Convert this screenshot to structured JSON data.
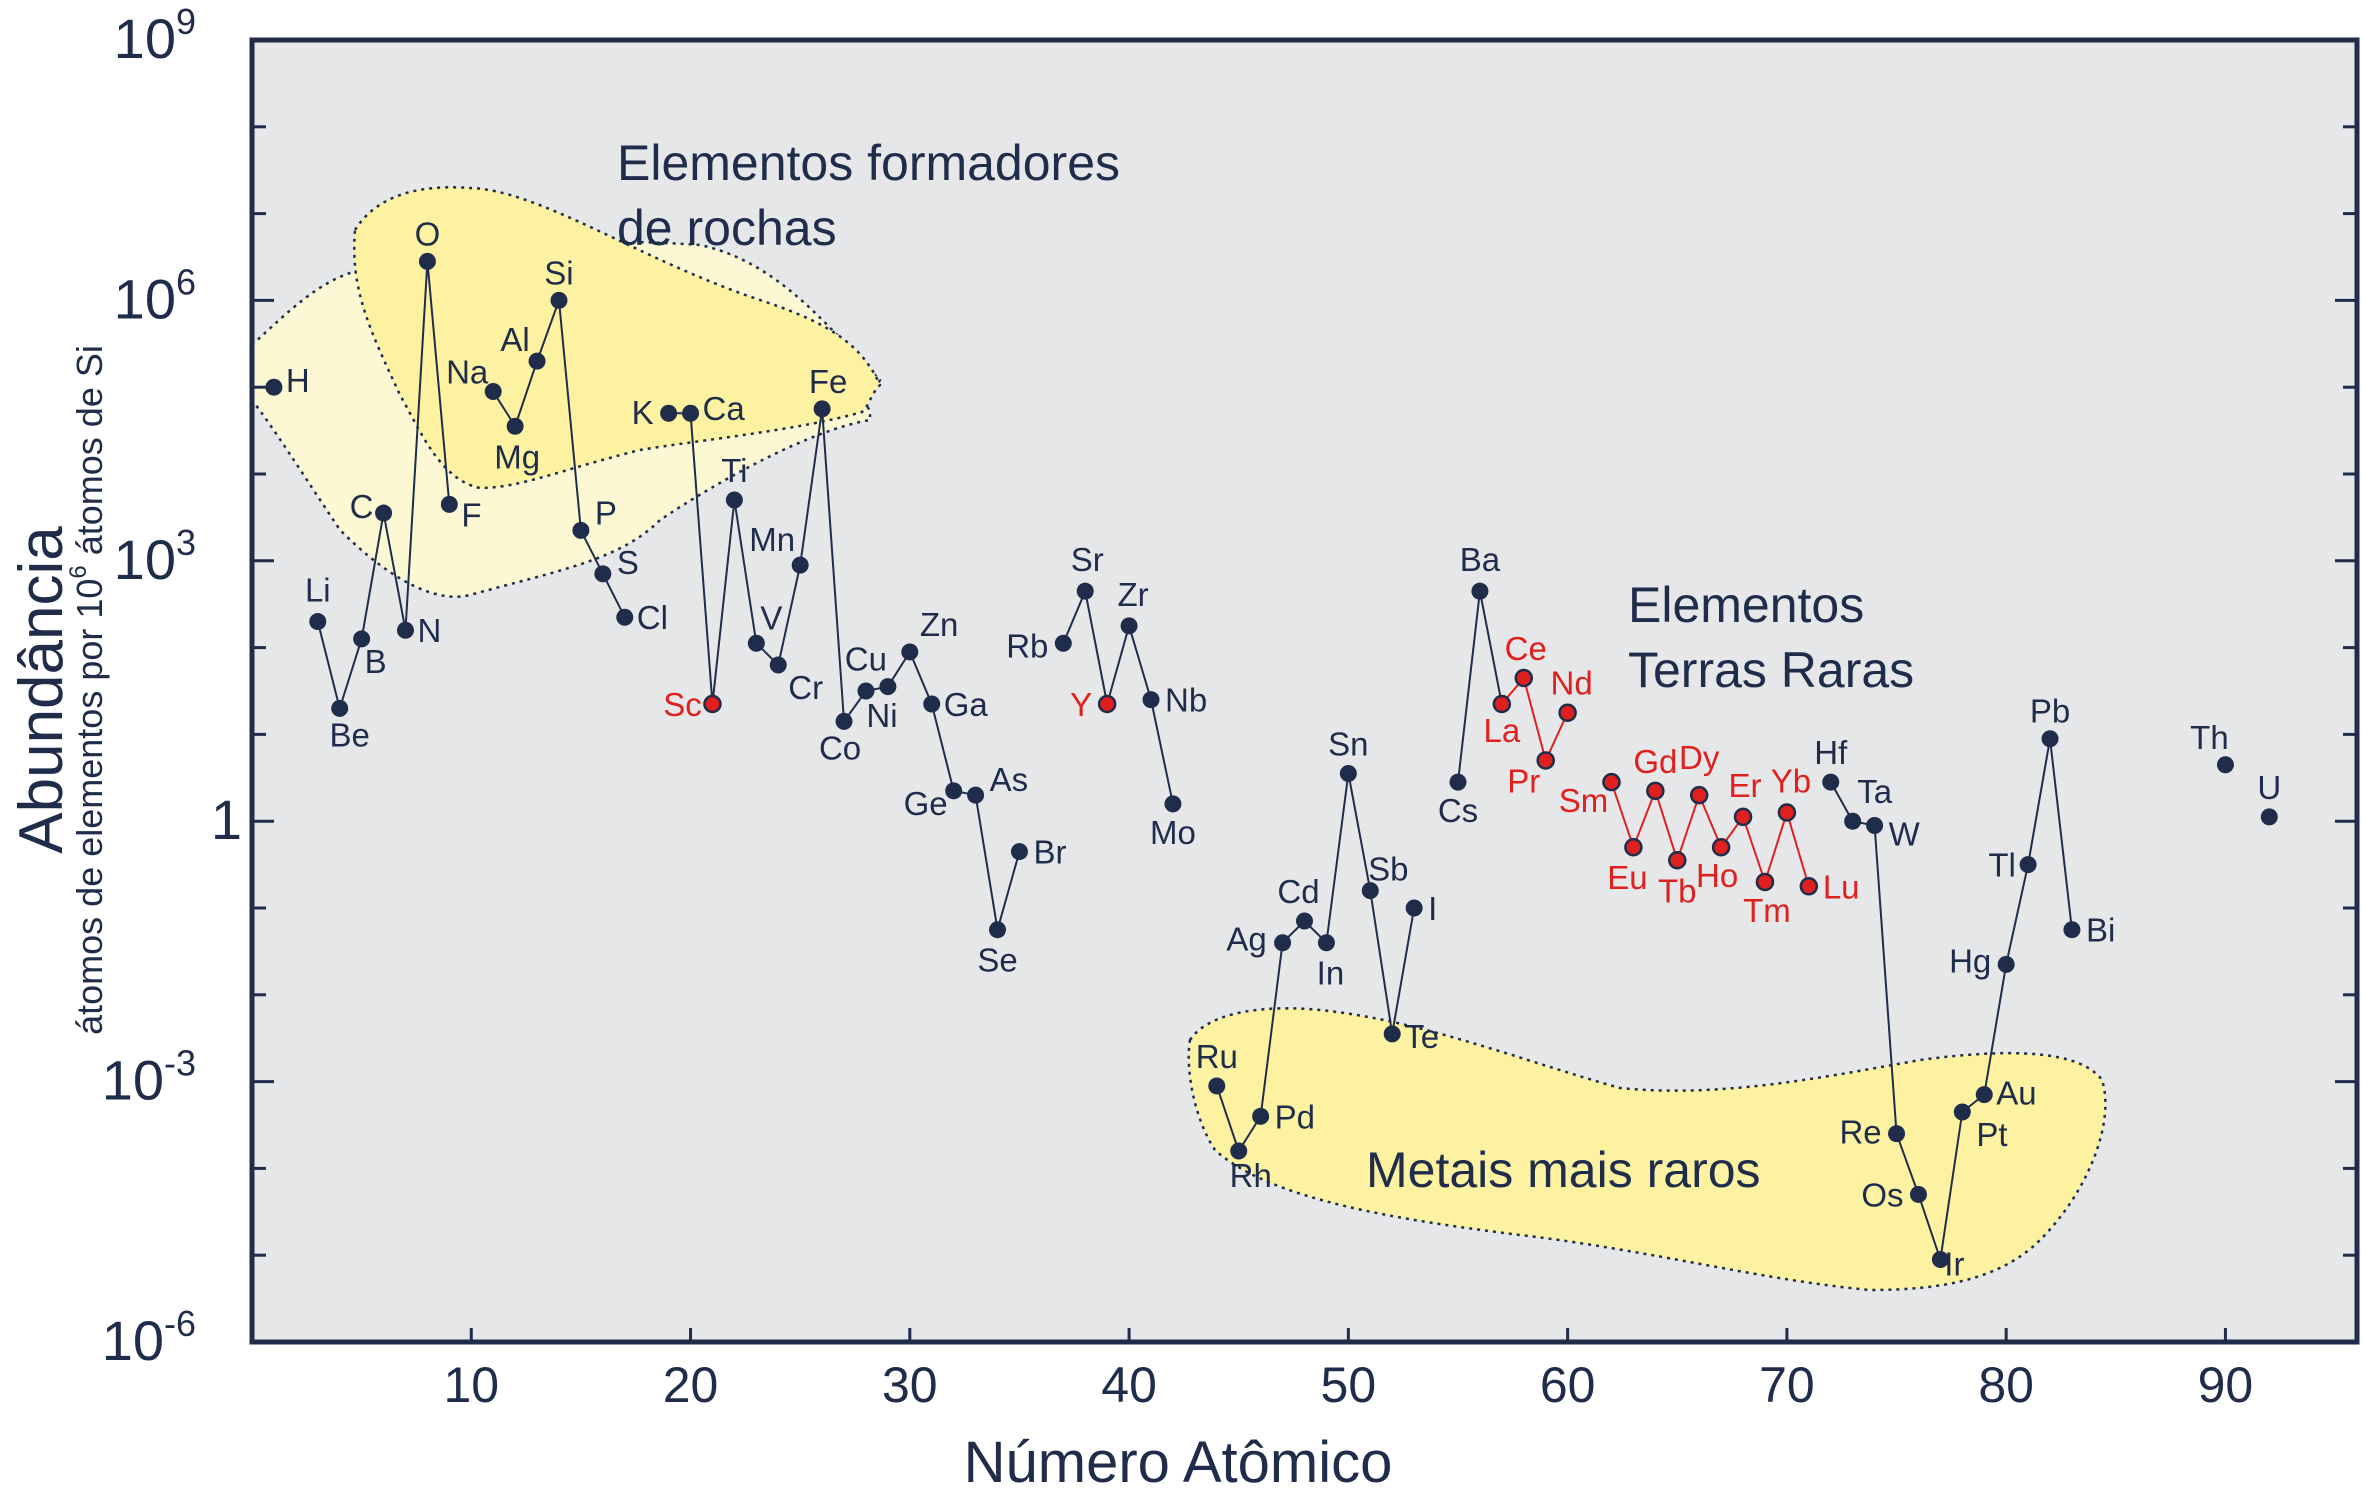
{
  "chart_data": {
    "type": "line",
    "title": "",
    "xlabel": "Número Atômico",
    "ylabel": "Abundância",
    "ylabel_sub_prefix": "átomos de elementos por 10",
    "ylabel_sub_sup": "6",
    "ylabel_sub_suffix": " átomos de Si",
    "xlim": [
      0,
      96
    ],
    "ylim_log10": [
      -6,
      9
    ],
    "x_ticks": [
      10,
      20,
      30,
      40,
      50,
      60,
      70,
      80,
      90
    ],
    "x_tick_labels": [
      "10",
      "20",
      "30",
      "40",
      "50",
      "60",
      "70",
      "80",
      "90"
    ],
    "y_major_ticks": [
      {
        "value": 9,
        "base": "10",
        "sup": "9"
      },
      {
        "value": 6,
        "base": "10",
        "sup": "6"
      },
      {
        "value": 3,
        "base": "10",
        "sup": "3"
      },
      {
        "value": 0,
        "base": "1",
        "sup": ""
      },
      {
        "value": -3,
        "base": "10",
        "sup": "-3"
      },
      {
        "value": -6,
        "base": "10",
        "sup": "-6"
      }
    ],
    "y_minor_ticks": [
      8,
      7,
      5,
      4,
      2,
      1,
      -1,
      -2,
      -4,
      -5
    ],
    "colors": {
      "background": "#e6e7e9",
      "frame": "#1f2d4b",
      "point": "#1f2d4b",
      "rare_earth": "#e0201f",
      "region_rock_dark": "#fdf2a2",
      "region_rock_light": "#fdf8d4",
      "region_metals": "#fdf2a2"
    },
    "points": [
      {
        "z": 1,
        "sym": "H",
        "log": 5.0,
        "lx": 12,
        "ly": 5,
        "anchor": "start"
      },
      {
        "z": 3,
        "sym": "Li",
        "log": 2.3,
        "lx": 0,
        "ly": -20,
        "anchor": "middle"
      },
      {
        "z": 4,
        "sym": "Be",
        "log": 1.3,
        "lx": 10,
        "ly": 38,
        "anchor": "middle"
      },
      {
        "z": 5,
        "sym": "B",
        "log": 2.1,
        "lx": 14,
        "ly": 34,
        "anchor": "middle"
      },
      {
        "z": 6,
        "sym": "C",
        "log": 3.55,
        "lx": -22,
        "ly": 5,
        "anchor": "middle"
      },
      {
        "z": 7,
        "sym": "N",
        "log": 2.2,
        "lx": 12,
        "ly": 12,
        "anchor": "start"
      },
      {
        "z": 8,
        "sym": "O",
        "log": 6.45,
        "lx": 0,
        "ly": -16,
        "anchor": "middle"
      },
      {
        "z": 9,
        "sym": "F",
        "log": 3.65,
        "lx": 12,
        "ly": 22,
        "anchor": "start"
      },
      {
        "z": 11,
        "sym": "Na",
        "log": 4.95,
        "lx": -26,
        "ly": -8,
        "anchor": "middle"
      },
      {
        "z": 12,
        "sym": "Mg",
        "log": 4.55,
        "lx": 2,
        "ly": 42,
        "anchor": "middle"
      },
      {
        "z": 13,
        "sym": "Al",
        "log": 5.3,
        "lx": -22,
        "ly": -10,
        "anchor": "middle"
      },
      {
        "z": 14,
        "sym": "Si",
        "log": 6.0,
        "lx": 0,
        "ly": -16,
        "anchor": "middle"
      },
      {
        "z": 15,
        "sym": "P",
        "log": 3.35,
        "lx": 14,
        "ly": -6,
        "anchor": "start"
      },
      {
        "z": 16,
        "sym": "S",
        "log": 2.85,
        "lx": 14,
        "ly": 0,
        "anchor": "start"
      },
      {
        "z": 17,
        "sym": "Cl",
        "log": 2.35,
        "lx": 12,
        "ly": 12,
        "anchor": "start"
      },
      {
        "z": 19,
        "sym": "K",
        "log": 4.7,
        "lx": -26,
        "ly": 11,
        "anchor": "middle"
      },
      {
        "z": 20,
        "sym": "Ca",
        "log": 4.7,
        "lx": 12,
        "ly": 7,
        "anchor": "start"
      },
      {
        "z": 21,
        "sym": "Sc",
        "log": 1.35,
        "lx": -30,
        "ly": 12,
        "anchor": "middle",
        "rare": true
      },
      {
        "z": 22,
        "sym": "Ti",
        "log": 3.7,
        "lx": 0,
        "ly": -18,
        "anchor": "middle"
      },
      {
        "z": 23,
        "sym": "V",
        "log": 2.05,
        "lx": 4,
        "ly": -14,
        "anchor": "start"
      },
      {
        "z": 24,
        "sym": "Cr",
        "log": 1.8,
        "lx": 10,
        "ly": 34,
        "anchor": "start"
      },
      {
        "z": 25,
        "sym": "Mn",
        "log": 2.95,
        "lx": -28,
        "ly": -14,
        "anchor": "middle"
      },
      {
        "z": 26,
        "sym": "Fe",
        "log": 4.75,
        "lx": 6,
        "ly": -16,
        "anchor": "middle"
      },
      {
        "z": 27,
        "sym": "Co",
        "log": 1.15,
        "lx": -4,
        "ly": 38,
        "anchor": "middle"
      },
      {
        "z": 28,
        "sym": "Ni",
        "log": 1.5,
        "lx": 16,
        "ly": 36,
        "anchor": "middle"
      },
      {
        "z": 29,
        "sym": "Cu",
        "log": 1.55,
        "lx": -22,
        "ly": -16,
        "anchor": "middle"
      },
      {
        "z": 30,
        "sym": "Zn",
        "log": 1.95,
        "lx": 10,
        "ly": -16,
        "anchor": "start"
      },
      {
        "z": 31,
        "sym": "Ga",
        "log": 1.35,
        "lx": 12,
        "ly": 12,
        "anchor": "start"
      },
      {
        "z": 32,
        "sym": "Ge",
        "log": 0.35,
        "lx": -28,
        "ly": 24,
        "anchor": "middle"
      },
      {
        "z": 33,
        "sym": "As",
        "log": 0.3,
        "lx": 14,
        "ly": -4,
        "anchor": "start"
      },
      {
        "z": 34,
        "sym": "Se",
        "log": -1.25,
        "lx": 0,
        "ly": 42,
        "anchor": "middle"
      },
      {
        "z": 35,
        "sym": "Br",
        "log": -0.35,
        "lx": 14,
        "ly": 12,
        "anchor": "start"
      },
      {
        "z": 37,
        "sym": "Rb",
        "log": 2.05,
        "lx": -36,
        "ly": 14,
        "anchor": "middle"
      },
      {
        "z": 38,
        "sym": "Sr",
        "log": 2.65,
        "lx": 2,
        "ly": -20,
        "anchor": "middle"
      },
      {
        "z": 39,
        "sym": "Y",
        "log": 1.35,
        "lx": -26,
        "ly": 12,
        "anchor": "middle",
        "rare": true
      },
      {
        "z": 40,
        "sym": "Zr",
        "log": 2.25,
        "lx": 4,
        "ly": -20,
        "anchor": "middle"
      },
      {
        "z": 41,
        "sym": "Nb",
        "log": 1.4,
        "lx": 14,
        "ly": 12,
        "anchor": "start"
      },
      {
        "z": 42,
        "sym": "Mo",
        "log": 0.2,
        "lx": 0,
        "ly": 40,
        "anchor": "middle"
      },
      {
        "z": 44,
        "sym": "Ru",
        "log": -3.05,
        "lx": 0,
        "ly": -18,
        "anchor": "middle"
      },
      {
        "z": 45,
        "sym": "Rh",
        "log": -3.8,
        "lx": 12,
        "ly": 36,
        "anchor": "middle"
      },
      {
        "z": 46,
        "sym": "Pd",
        "log": -3.4,
        "lx": 14,
        "ly": 12,
        "anchor": "start"
      },
      {
        "z": 47,
        "sym": "Ag",
        "log": -1.4,
        "lx": -36,
        "ly": 8,
        "anchor": "middle"
      },
      {
        "z": 48,
        "sym": "Cd",
        "log": -1.15,
        "lx": -6,
        "ly": -18,
        "anchor": "middle"
      },
      {
        "z": 49,
        "sym": "In",
        "log": -1.4,
        "lx": 4,
        "ly": 42,
        "anchor": "middle"
      },
      {
        "z": 50,
        "sym": "Sn",
        "log": 0.55,
        "lx": 0,
        "ly": -18,
        "anchor": "middle"
      },
      {
        "z": 51,
        "sym": "Sb",
        "log": -0.8,
        "lx": 18,
        "ly": -10,
        "anchor": "middle"
      },
      {
        "z": 52,
        "sym": "Te",
        "log": -2.45,
        "lx": 12,
        "ly": 14,
        "anchor": "start"
      },
      {
        "z": 53,
        "sym": "I",
        "log": -1.0,
        "lx": 14,
        "ly": 12,
        "anchor": "start",
        "big": true
      },
      {
        "z": 55,
        "sym": "Cs",
        "log": 0.45,
        "lx": 0,
        "ly": 40,
        "anchor": "middle"
      },
      {
        "z": 56,
        "sym": "Ba",
        "log": 2.65,
        "lx": 0,
        "ly": -20,
        "anchor": "middle"
      },
      {
        "z": 57,
        "sym": "La",
        "log": 1.35,
        "lx": 0,
        "ly": 38,
        "anchor": "middle",
        "rare": true
      },
      {
        "z": 58,
        "sym": "Ce",
        "log": 1.65,
        "lx": 2,
        "ly": -18,
        "anchor": "middle",
        "rare": true
      },
      {
        "z": 59,
        "sym": "Pr",
        "log": 0.7,
        "lx": -22,
        "ly": 32,
        "anchor": "middle",
        "rare": true
      },
      {
        "z": 60,
        "sym": "Nd",
        "log": 1.25,
        "lx": 4,
        "ly": -18,
        "anchor": "middle",
        "rare": true
      },
      {
        "z": 62,
        "sym": "Sm",
        "log": 0.45,
        "lx": -28,
        "ly": 30,
        "anchor": "middle",
        "rare": true
      },
      {
        "z": 63,
        "sym": "Eu",
        "log": -0.3,
        "lx": -6,
        "ly": 42,
        "anchor": "middle",
        "rare": true
      },
      {
        "z": 64,
        "sym": "Gd",
        "log": 0.35,
        "lx": 0,
        "ly": -18,
        "anchor": "middle",
        "rare": true
      },
      {
        "z": 65,
        "sym": "Tb",
        "log": -0.45,
        "lx": 0,
        "ly": 42,
        "anchor": "middle",
        "rare": true
      },
      {
        "z": 66,
        "sym": "Dy",
        "log": 0.3,
        "lx": 0,
        "ly": -26,
        "anchor": "middle",
        "rare": true
      },
      {
        "z": 67,
        "sym": "Ho",
        "log": -0.3,
        "lx": -4,
        "ly": 40,
        "anchor": "middle",
        "rare": true
      },
      {
        "z": 68,
        "sym": "Er",
        "log": 0.05,
        "lx": 2,
        "ly": -20,
        "anchor": "middle",
        "rare": true
      },
      {
        "z": 69,
        "sym": "Tm",
        "log": -0.7,
        "lx": 2,
        "ly": 40,
        "anchor": "middle",
        "rare": true
      },
      {
        "z": 70,
        "sym": "Yb",
        "log": 0.1,
        "lx": 4,
        "ly": -20,
        "anchor": "middle",
        "rare": true
      },
      {
        "z": 71,
        "sym": "Lu",
        "log": -0.75,
        "lx": 14,
        "ly": 12,
        "anchor": "start",
        "rare": true
      },
      {
        "z": 72,
        "sym": "Hf",
        "log": 0.45,
        "lx": 0,
        "ly": -18,
        "anchor": "middle"
      },
      {
        "z": 73,
        "sym": "Ta",
        "log": 0.0,
        "lx": 22,
        "ly": -18,
        "anchor": "middle"
      },
      {
        "z": 74,
        "sym": "W",
        "log": -0.05,
        "lx": 14,
        "ly": 20,
        "anchor": "start"
      },
      {
        "z": 75,
        "sym": "Re",
        "log": -3.6,
        "lx": -36,
        "ly": 10,
        "anchor": "middle"
      },
      {
        "z": 76,
        "sym": "Os",
        "log": -4.3,
        "lx": -36,
        "ly": 12,
        "anchor": "middle"
      },
      {
        "z": 77,
        "sym": "Ir",
        "log": -5.05,
        "lx": 14,
        "ly": 16,
        "anchor": "middle"
      },
      {
        "z": 78,
        "sym": "Pt",
        "log": -3.35,
        "lx": 14,
        "ly": 34,
        "anchor": "start"
      },
      {
        "z": 79,
        "sym": "Au",
        "log": -3.15,
        "lx": 12,
        "ly": 10,
        "anchor": "start"
      },
      {
        "z": 80,
        "sym": "Hg",
        "log": -1.65,
        "lx": -36,
        "ly": 8,
        "anchor": "middle"
      },
      {
        "z": 81,
        "sym": "Tl",
        "log": -0.5,
        "lx": -26,
        "ly": 12,
        "anchor": "middle"
      },
      {
        "z": 82,
        "sym": "Pb",
        "log": 0.95,
        "lx": 0,
        "ly": -16,
        "anchor": "middle"
      },
      {
        "z": 83,
        "sym": "Bi",
        "log": -1.25,
        "lx": 14,
        "ly": 12,
        "anchor": "start"
      },
      {
        "z": 90,
        "sym": "Th",
        "log": 0.65,
        "lx": -16,
        "ly": -16,
        "anchor": "middle"
      },
      {
        "z": 92,
        "sym": "U",
        "log": 0.05,
        "lx": 0,
        "ly": -18,
        "anchor": "middle"
      }
    ],
    "connections": [
      [
        3,
        4,
        5,
        6,
        7,
        8,
        9
      ],
      [
        11,
        12,
        13,
        14,
        15,
        16,
        17
      ],
      [
        19,
        20,
        21,
        22,
        23,
        24,
        25,
        26,
        27,
        28,
        29,
        30,
        31,
        32,
        33,
        34,
        35
      ],
      [
        37,
        38,
        39,
        40,
        41,
        42
      ],
      [
        44,
        45,
        46,
        47,
        48,
        49,
        50,
        51,
        52,
        53
      ],
      [
        55,
        56,
        57
      ],
      [
        72,
        73,
        74,
        75,
        76,
        77,
        78,
        79,
        80,
        81,
        82,
        83
      ]
    ],
    "rare_connections": [
      [
        57,
        58,
        59,
        60
      ],
      [
        62,
        63,
        64,
        65,
        66,
        67,
        68,
        69,
        70,
        71
      ]
    ],
    "regions": [
      {
        "name": "rock-forming",
        "label_line1": "Elementos formadores",
        "label_line2": "de rochas"
      },
      {
        "name": "rare-earth",
        "label_line1": "Elementos",
        "label_line2": "Terras Raras"
      },
      {
        "name": "rarest-metals",
        "label_line1": "Metais mais raros"
      }
    ]
  }
}
